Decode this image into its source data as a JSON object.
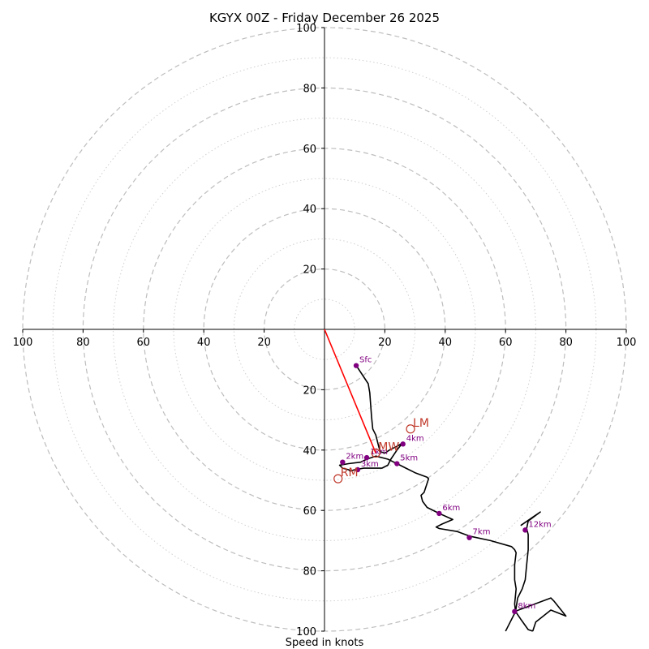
{
  "chart_data": {
    "type": "hodograph",
    "title": "KGYX 00Z - Friday December 26 2025",
    "xlabel": "Speed in knots",
    "units": "knots",
    "range": [
      -100,
      100
    ],
    "ring_major": [
      20,
      40,
      60,
      80,
      100
    ],
    "ring_minor": [
      10,
      30,
      50,
      70,
      90
    ],
    "x_ticks": [
      {
        "value": -100,
        "label": "100"
      },
      {
        "value": -80,
        "label": "80"
      },
      {
        "value": -60,
        "label": "60"
      },
      {
        "value": -40,
        "label": "40"
      },
      {
        "value": -20,
        "label": "20"
      },
      {
        "value": 20,
        "label": "20"
      },
      {
        "value": 40,
        "label": "40"
      },
      {
        "value": 60,
        "label": "60"
      },
      {
        "value": 80,
        "label": "80"
      },
      {
        "value": 100,
        "label": "100"
      }
    ],
    "y_ticks": [
      {
        "value": 100,
        "label": "100"
      },
      {
        "value": 80,
        "label": "80"
      },
      {
        "value": 60,
        "label": "60"
      },
      {
        "value": 40,
        "label": "40"
      },
      {
        "value": 20,
        "label": "20"
      },
      {
        "value": -20,
        "label": "20"
      },
      {
        "value": -40,
        "label": "40"
      },
      {
        "value": -60,
        "label": "60"
      },
      {
        "value": -80,
        "label": "80"
      },
      {
        "value": -100,
        "label": "100"
      }
    ],
    "trace_uv": [
      [
        10.5,
        -12
      ],
      [
        14.5,
        -18
      ],
      [
        15,
        -21
      ],
      [
        15.3,
        -25
      ],
      [
        15.6,
        -29
      ],
      [
        16,
        -33
      ],
      [
        17,
        -35
      ],
      [
        17.5,
        -37
      ],
      [
        18,
        -39
      ],
      [
        18.5,
        -40.5
      ],
      [
        20,
        -41
      ],
      [
        21.5,
        -40
      ],
      [
        24.5,
        -38.5
      ],
      [
        26,
        -37.5
      ],
      [
        24,
        -40
      ],
      [
        22,
        -43
      ],
      [
        21,
        -45
      ],
      [
        19,
        -46
      ],
      [
        18,
        -46
      ],
      [
        16,
        -46
      ],
      [
        13,
        -46
      ],
      [
        10,
        -46.5
      ],
      [
        8.5,
        -47
      ],
      [
        8,
        -46.5
      ],
      [
        6,
        -46
      ],
      [
        5,
        -45
      ],
      [
        8,
        -44.5
      ],
      [
        12,
        -44
      ],
      [
        14,
        -43
      ],
      [
        17,
        -42
      ],
      [
        21,
        -43
      ],
      [
        23,
        -44
      ],
      [
        24,
        -44.5
      ],
      [
        27,
        -46
      ],
      [
        30,
        -47.5
      ],
      [
        34,
        -49
      ],
      [
        34.5,
        -49.5
      ],
      [
        33,
        -54
      ],
      [
        32,
        -55
      ],
      [
        32.5,
        -57
      ],
      [
        34,
        -59
      ],
      [
        38,
        -61
      ],
      [
        42.5,
        -63
      ],
      [
        39,
        -64.5
      ],
      [
        37,
        -65.5
      ],
      [
        38,
        -66
      ],
      [
        44,
        -67
      ],
      [
        48,
        -68.5
      ],
      [
        55,
        -70
      ],
      [
        62,
        -72
      ],
      [
        63,
        -73
      ],
      [
        63.5,
        -74
      ],
      [
        63,
        -78
      ],
      [
        63,
        -83
      ],
      [
        63.5,
        -86
      ],
      [
        63,
        -91
      ],
      [
        63.3,
        -93.5
      ],
      [
        60.5,
        -99
      ],
      [
        60,
        -100
      ]
    ],
    "trace_uv_upper": [
      [
        65,
        -65
      ],
      [
        71.5,
        -60.5
      ],
      [
        67.5,
        -63.5
      ],
      [
        67,
        -66
      ],
      [
        67.5,
        -68
      ],
      [
        67.5,
        -73
      ],
      [
        67,
        -78
      ],
      [
        66.5,
        -83
      ],
      [
        65.5,
        -86
      ],
      [
        64,
        -89
      ],
      [
        63.3,
        -93.5
      ],
      [
        65,
        -96
      ],
      [
        67.5,
        -99.5
      ],
      [
        69,
        -100
      ]
    ],
    "box_uv": [
      [
        63,
        -93.5
      ],
      [
        75,
        -89
      ],
      [
        76,
        -90
      ],
      [
        80,
        -95
      ],
      [
        75,
        -93
      ],
      [
        70,
        -97
      ],
      [
        69,
        -100
      ]
    ],
    "heights": [
      {
        "label": "Sfc",
        "u": 10.5,
        "v": -12
      },
      {
        "label": "1km",
        "u": 14,
        "v": -42.5
      },
      {
        "label": "2km",
        "u": 6,
        "v": -44
      },
      {
        "label": "3km",
        "u": 11,
        "v": -46.5
      },
      {
        "label": "4km",
        "u": 26,
        "v": -38
      },
      {
        "label": "5km",
        "u": 24,
        "v": -44.5
      },
      {
        "label": "6km",
        "u": 38,
        "v": -61
      },
      {
        "label": "7km",
        "u": 48,
        "v": -69
      },
      {
        "label": "8km",
        "u": 63,
        "v": -93.5
      },
      {
        "label": "12km",
        "u": 66.5,
        "v": -66.5
      }
    ],
    "storm_motions": [
      {
        "label": "LM",
        "u": 28.5,
        "v": -33
      },
      {
        "label": "MW",
        "u": 17,
        "v": -41
      },
      {
        "label": "RM",
        "u": 4.5,
        "v": -49.5
      }
    ],
    "shear_vector": {
      "from": [
        0,
        0
      ],
      "to": [
        17,
        -41
      ]
    }
  }
}
